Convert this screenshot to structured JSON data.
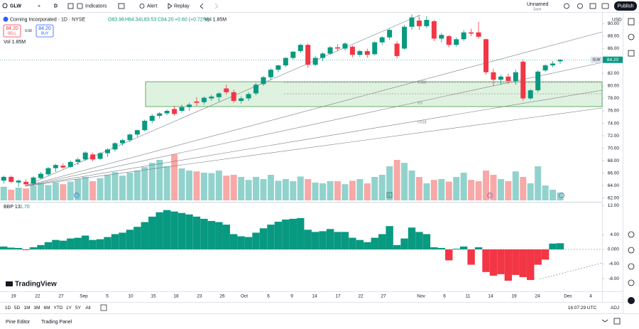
{
  "toolbar": {
    "symbol": "GLW",
    "interval": "D",
    "indicators": "Indicators",
    "alert": "Alert",
    "replay": "Replay",
    "layout_name": "Unnamed",
    "layout_status": "Save",
    "publish": "Publish"
  },
  "legend": {
    "title": "Corning Incorporated · 1D · NYSE",
    "open": "O83.96",
    "high": "H84.34",
    "low": "L83.53",
    "close": "C84.20",
    "change": "+0.60 (+0.72%)",
    "volume": "Vol 1.85M"
  },
  "trade": {
    "sell_price": "84.20",
    "sell": "SELL",
    "spread": "0.00",
    "buy_price": "84.20",
    "buy": "BUY"
  },
  "currency": "USD",
  "price_tag": {
    "symbol": "GLW",
    "value": "84.20"
  },
  "fib_labels": [
    "0",
    "0.382",
    "0.5",
    "0.618"
  ],
  "events": [
    "D",
    "E",
    "D"
  ],
  "brand": "TradingView",
  "chart_data": [
    {
      "type": "candlestick",
      "colors": {
        "up": "#089981",
        "down": "#f23645"
      },
      "ylim": [
        61.51,
        91.52
      ],
      "yticks": [
        {
          "value": 90,
          "label": "90.00"
        },
        {
          "value": 88,
          "label": "88.00"
        },
        {
          "value": 86,
          "label": "86.00"
        },
        {
          "value": 84,
          "label": "84.00"
        },
        {
          "value": 82,
          "label": "82.00"
        },
        {
          "value": 80,
          "label": "80.00"
        },
        {
          "value": 78,
          "label": "78.00"
        },
        {
          "value": 76,
          "label": "76.00"
        },
        {
          "value": 74,
          "label": "74.00"
        },
        {
          "value": 72,
          "label": "72.00"
        },
        {
          "value": 70,
          "label": "70.00"
        },
        {
          "value": 68,
          "label": "68.00"
        },
        {
          "value": 66,
          "label": "66.00"
        },
        {
          "value": 64,
          "label": "64.00"
        },
        {
          "value": 62,
          "label": "62.00"
        }
      ],
      "ohlc": [
        [
          64.8,
          65.6,
          64.3,
          65.4
        ],
        [
          65.4,
          65.6,
          64.4,
          64.6
        ],
        [
          64.5,
          65.0,
          63.8,
          64.8
        ],
        [
          64.6,
          65.0,
          63.9,
          64.2
        ],
        [
          64.3,
          65.5,
          64.0,
          65.3
        ],
        [
          65.2,
          66.2,
          65.0,
          65.9
        ],
        [
          65.8,
          67.0,
          65.5,
          66.8
        ],
        [
          66.8,
          67.5,
          66.2,
          67.3
        ],
        [
          67.2,
          67.6,
          66.7,
          66.9
        ],
        [
          67.0,
          68.0,
          66.8,
          67.8
        ],
        [
          67.8,
          68.5,
          67.3,
          68.2
        ],
        [
          68.2,
          69.5,
          68.0,
          69.3
        ],
        [
          69.0,
          69.3,
          67.9,
          68.2
        ],
        [
          68.3,
          69.4,
          68.1,
          69.2
        ],
        [
          69.2,
          70.0,
          68.6,
          69.8
        ],
        [
          69.8,
          71.0,
          69.5,
          70.8
        ],
        [
          70.8,
          71.5,
          70.4,
          71.3
        ],
        [
          71.3,
          72.4,
          71.0,
          72.2
        ],
        [
          72.2,
          73.0,
          71.8,
          72.9
        ],
        [
          72.9,
          74.6,
          72.7,
          74.4
        ],
        [
          74.4,
          75.5,
          74.0,
          75.2
        ],
        [
          75.2,
          75.8,
          74.8,
          75.6
        ],
        [
          75.6,
          76.2,
          75.3,
          76.0
        ],
        [
          76.3,
          76.8,
          75.2,
          75.5
        ],
        [
          76.0,
          77.0,
          75.7,
          76.6
        ],
        [
          76.6,
          77.3,
          76.0,
          77.0
        ],
        [
          77.5,
          78.2,
          76.8,
          77.3
        ],
        [
          77.4,
          78.3,
          77.0,
          78.1
        ],
        [
          78.0,
          78.6,
          77.6,
          78.3
        ],
        [
          78.2,
          79.0,
          77.5,
          78.8
        ],
        [
          79.6,
          80.2,
          78.6,
          79.0
        ],
        [
          79.0,
          79.4,
          77.3,
          77.6
        ],
        [
          77.6,
          78.3,
          77.2,
          78.0
        ],
        [
          78.0,
          79.0,
          77.6,
          78.7
        ],
        [
          78.8,
          80.5,
          78.5,
          80.2
        ],
        [
          80.3,
          81.6,
          80.0,
          81.4
        ],
        [
          81.4,
          82.8,
          81.0,
          82.6
        ],
        [
          82.6,
          83.4,
          82.2,
          83.3
        ],
        [
          83.3,
          84.6,
          83.0,
          84.5
        ],
        [
          84.5,
          85.6,
          84.2,
          85.5
        ],
        [
          85.6,
          86.8,
          85.3,
          86.6
        ],
        [
          86.6,
          86.8,
          82.9,
          83.4
        ],
        [
          83.4,
          84.8,
          83.2,
          84.5
        ],
        [
          84.5,
          85.4,
          84.0,
          85.2
        ],
        [
          85.2,
          86.4,
          85.0,
          86.2
        ],
        [
          86.2,
          86.7,
          85.6,
          86.0
        ],
        [
          86.0,
          87.0,
          85.7,
          86.8
        ],
        [
          86.3,
          86.5,
          84.6,
          85.0
        ],
        [
          85.0,
          85.8,
          84.7,
          85.6
        ],
        [
          85.6,
          86.0,
          84.5,
          85.0
        ],
        [
          85.1,
          87.2,
          84.9,
          87.0
        ],
        [
          87.0,
          88.0,
          86.6,
          87.8
        ],
        [
          87.8,
          89.2,
          87.4,
          89.0
        ],
        [
          86.8,
          87.2,
          84.4,
          84.8
        ],
        [
          86.0,
          89.8,
          85.8,
          89.5
        ],
        [
          89.5,
          91.5,
          89.0,
          91.0
        ],
        [
          90.5,
          91.0,
          89.0,
          89.6
        ],
        [
          89.6,
          91.2,
          89.3,
          90.6
        ],
        [
          90.4,
          90.6,
          87.2,
          87.6
        ],
        [
          87.6,
          88.5,
          87.0,
          88.2
        ],
        [
          88.0,
          88.2,
          86.2,
          86.6
        ],
        [
          86.6,
          87.8,
          86.3,
          87.5
        ],
        [
          87.5,
          89.0,
          87.2,
          88.6
        ],
        [
          88.6,
          89.2,
          88.0,
          88.4
        ],
        [
          88.6,
          90.3,
          87.6,
          87.9
        ],
        [
          87.5,
          87.6,
          81.8,
          82.2
        ],
        [
          82.2,
          82.8,
          80.0,
          81.0
        ],
        [
          81.0,
          81.8,
          80.2,
          81.5
        ],
        [
          81.5,
          82.0,
          80.3,
          80.8
        ],
        [
          80.8,
          82.6,
          80.2,
          82.2
        ],
        [
          83.9,
          84.2,
          77.6,
          78.0
        ],
        [
          78.0,
          79.5,
          77.8,
          79.3
        ],
        [
          79.3,
          82.5,
          79.0,
          82.3
        ],
        [
          82.5,
          83.5,
          82.2,
          83.3
        ],
        [
          83.3,
          84.0,
          83.0,
          83.6
        ],
        [
          83.96,
          84.34,
          83.53,
          84.2
        ]
      ],
      "volume": [
        3.2,
        2.5,
        3.0,
        2.8,
        3.5,
        4.0,
        3.6,
        4.2,
        3.8,
        4.4,
        5.0,
        5.5,
        4.5,
        5.2,
        6.0,
        6.6,
        5.8,
        6.5,
        7.0,
        7.8,
        8.8,
        9.5,
        8.0,
        10.8,
        7.5,
        7.0,
        6.8,
        6.5,
        6.4,
        7.0,
        5.8,
        6.0,
        5.5,
        4.8,
        5.5,
        5.0,
        6.0,
        4.6,
        5.0,
        4.5,
        5.6,
        5.0,
        4.2,
        4.0,
        4.5,
        4.5,
        3.8,
        4.6,
        5.0,
        4.0,
        5.5,
        6.0,
        8.0,
        9.5,
        8.8,
        7.0,
        5.5,
        4.0,
        4.8,
        5.0,
        4.4,
        5.5,
        6.5,
        4.8,
        4.5,
        7.0,
        6.0,
        5.0,
        4.5,
        6.8,
        5.5,
        4.0,
        8.0,
        3.5,
        2.5,
        1.85
      ]
    },
    {
      "type": "bar",
      "name": "BBP 13",
      "last_value": "1.70",
      "colors": {
        "up": "#089981",
        "down": "#f23645"
      },
      "ylim": [
        -11.5,
        12.87
      ],
      "yticks": [
        {
          "value": 12,
          "label": "12.00"
        },
        {
          "value": 4,
          "label": "4.00"
        },
        {
          "value": 0,
          "label": "0.000"
        },
        {
          "value": -4,
          "label": "-4.00"
        },
        {
          "value": -8,
          "label": "-8.00"
        }
      ],
      "values": [
        0.8,
        0.5,
        0.4,
        -0.2,
        0.6,
        1.2,
        2.0,
        2.6,
        2.4,
        3.0,
        3.2,
        3.8,
        2.6,
        2.8,
        3.4,
        4.2,
        4.6,
        5.4,
        6.2,
        7.5,
        9.0,
        10.2,
        10.8,
        10.4,
        10.0,
        9.6,
        9.0,
        8.4,
        7.8,
        7.5,
        6.8,
        4.2,
        3.6,
        3.4,
        4.6,
        5.8,
        6.8,
        7.6,
        8.2,
        8.4,
        8.6,
        5.4,
        4.8,
        5.0,
        5.6,
        4.8,
        4.8,
        3.2,
        2.6,
        2.0,
        3.2,
        4.2,
        6.4,
        1.2,
        3.0,
        6.0,
        4.8,
        4.2,
        0.6,
        0.4,
        -3.0,
        0.2,
        0.8,
        -4.2,
        0.6,
        -6.2,
        -7.2,
        -6.8,
        -8.6,
        -7.0,
        -7.6,
        -8.4,
        -4.2,
        -2.8,
        1.6,
        1.7
      ]
    }
  ],
  "x_labels": [
    "19",
    "22",
    "27",
    "Sep",
    "5",
    "10",
    "15",
    "18",
    "23",
    "26",
    "Oct",
    "6",
    "9",
    "14",
    "17",
    "22",
    "27",
    "Nov",
    "6",
    "11",
    "14",
    "19",
    "24",
    "Dec",
    "4"
  ],
  "ranges": [
    "1D",
    "5D",
    "1M",
    "3M",
    "6M",
    "YTD",
    "1Y",
    "5Y",
    "All"
  ],
  "clock": "16:07:29 UTC",
  "adj": "ADJ",
  "footer": {
    "pine_editor": "Pine Editor",
    "trading_panel": "Trading Panel"
  }
}
